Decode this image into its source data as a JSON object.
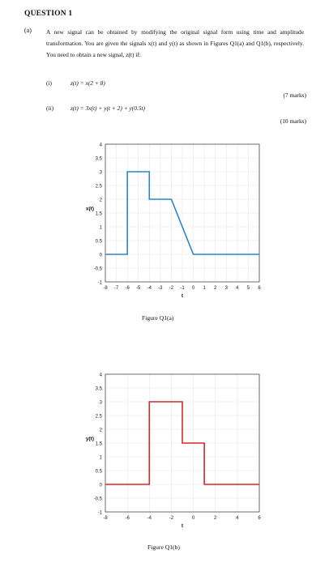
{
  "heading": "QUESTION 1",
  "part_label": "(a)",
  "intro": "A new signal can be obtained by modifying the original signal form using time and amplitude transformation. You are given the signals x(t) and y(t) as shown in Figures Q1(a) and Q1(b), respectively. You need to obtain a new signal, z(t) if:",
  "items": [
    {
      "label": "(i)",
      "equation": "z(t) = x(2 + 8)",
      "marks": "(7 marks)"
    },
    {
      "label": "(ii)",
      "equation": "z(t) = 3x(t) + y(t + 2) + y(0.5t)",
      "marks": "(10 marks)"
    }
  ],
  "chart_data": [
    {
      "type": "line",
      "caption": "Figure Q1(a)",
      "xlabel": "t",
      "ylabel": "x(t)",
      "xlim": [
        -8,
        6
      ],
      "ylim": [
        -1,
        4
      ],
      "xticks": [
        -8,
        -7,
        -6,
        -5,
        -4,
        -3,
        -2,
        -1,
        0,
        1,
        2,
        3,
        4,
        5,
        6
      ],
      "yticks": [
        -1,
        -0.5,
        0,
        0.5,
        1,
        1.5,
        2,
        2.5,
        3,
        3.5,
        4
      ],
      "color": "#2a86c6",
      "series": [
        {
          "x": [
            -8,
            -6,
            -6,
            -4,
            -4,
            -2,
            0,
            6
          ],
          "y": [
            0,
            0,
            3,
            3,
            2,
            2,
            0,
            0
          ]
        }
      ]
    },
    {
      "type": "line",
      "caption": "Figure Q1(b)",
      "xlabel": "t",
      "ylabel": "y(t)",
      "xlim": [
        -8,
        6
      ],
      "ylim": [
        -1,
        4
      ],
      "xticks": [
        -8,
        -6,
        -4,
        -2,
        0,
        2,
        4,
        6
      ],
      "yticks": [
        -1,
        -0.5,
        0,
        0.5,
        1,
        1.5,
        2,
        2.5,
        3,
        3.5,
        4
      ],
      "color": "#d62728",
      "series": [
        {
          "x": [
            -8,
            -4,
            -4,
            -1,
            -1,
            1,
            1,
            6
          ],
          "y": [
            0,
            0,
            3,
            3,
            1.5,
            1.5,
            0,
            0
          ]
        }
      ]
    }
  ]
}
